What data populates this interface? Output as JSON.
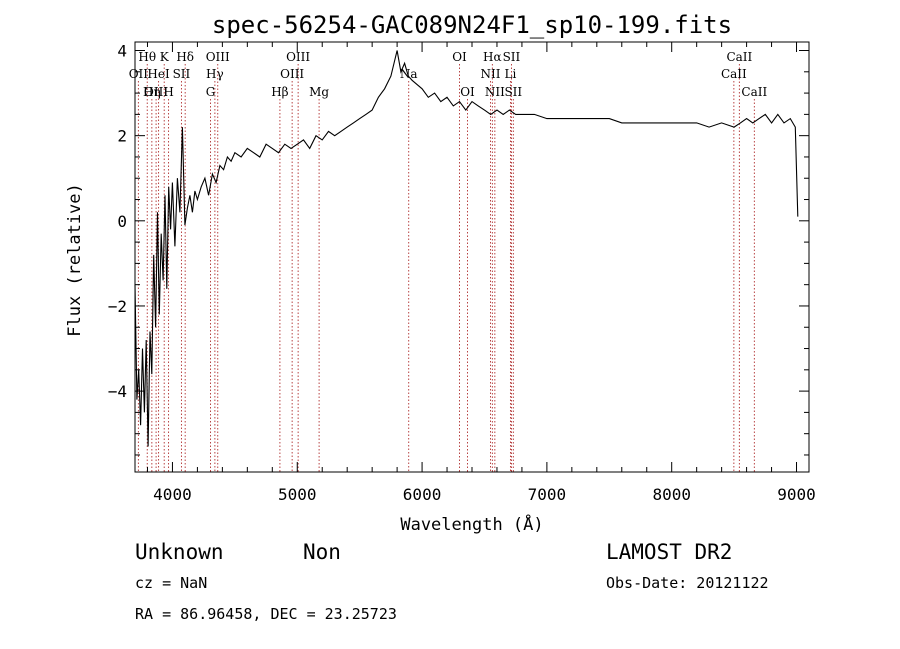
{
  "chart_data": {
    "type": "line",
    "title": "spec-56254-GAC089N24F1_sp10-199.fits",
    "xlabel": "Wavelength (Å)",
    "ylabel": "Flux (relative)",
    "xlim": [
      3700,
      9100
    ],
    "ylim": [
      -5.9,
      4.2
    ],
    "xticks": [
      4000,
      5000,
      6000,
      7000,
      8000,
      9000
    ],
    "xtick_labels": [
      "4000",
      "5000",
      "6000",
      "7000",
      "8000",
      "9000"
    ],
    "yticks": [
      -4,
      -2,
      0,
      2,
      4
    ],
    "ytick_labels": [
      "−4",
      "−2",
      "0",
      "2",
      "4"
    ],
    "series": [
      {
        "name": "spectrum",
        "x": [
          3700,
          3715,
          3730,
          3745,
          3760,
          3775,
          3790,
          3805,
          3820,
          3835,
          3850,
          3865,
          3880,
          3895,
          3910,
          3925,
          3940,
          3955,
          3970,
          3985,
          4000,
          4020,
          4040,
          4060,
          4080,
          4100,
          4120,
          4140,
          4160,
          4180,
          4200,
          4230,
          4260,
          4290,
          4320,
          4350,
          4380,
          4410,
          4440,
          4470,
          4500,
          4550,
          4600,
          4650,
          4700,
          4750,
          4800,
          4850,
          4900,
          4950,
          5000,
          5050,
          5100,
          5150,
          5200,
          5250,
          5300,
          5350,
          5400,
          5450,
          5500,
          5550,
          5600,
          5650,
          5700,
          5750,
          5800,
          5830,
          5860,
          5890,
          5920,
          5960,
          6000,
          6050,
          6100,
          6150,
          6200,
          6250,
          6300,
          6350,
          6400,
          6450,
          6500,
          6550,
          6600,
          6650,
          6700,
          6750,
          6800,
          6900,
          7000,
          7100,
          7200,
          7300,
          7400,
          7500,
          7600,
          7700,
          7800,
          7900,
          8000,
          8100,
          8200,
          8300,
          8400,
          8500,
          8550,
          8600,
          8650,
          8700,
          8750,
          8800,
          8850,
          8900,
          8950,
          8990,
          9010
        ],
        "y": [
          -1.5,
          -4.2,
          -3.5,
          -4.8,
          -3.0,
          -4.5,
          -2.8,
          -5.3,
          -2.6,
          -3.6,
          -0.8,
          -2.5,
          0.2,
          -2.2,
          -0.3,
          -1.4,
          0.6,
          -1.6,
          0.8,
          -0.2,
          0.9,
          -0.6,
          1.0,
          0.2,
          2.2,
          -0.1,
          0.3,
          0.6,
          0.2,
          0.7,
          0.5,
          0.8,
          1.0,
          0.6,
          1.1,
          0.9,
          1.3,
          1.2,
          1.5,
          1.4,
          1.6,
          1.5,
          1.7,
          1.6,
          1.5,
          1.8,
          1.7,
          1.6,
          1.8,
          1.7,
          1.8,
          1.9,
          1.7,
          2.0,
          1.9,
          2.1,
          2.0,
          2.1,
          2.2,
          2.3,
          2.4,
          2.5,
          2.6,
          2.9,
          3.1,
          3.4,
          4.0,
          3.5,
          3.7,
          3.4,
          3.3,
          3.2,
          3.1,
          2.9,
          3.0,
          2.8,
          2.9,
          2.7,
          2.8,
          2.6,
          2.8,
          2.7,
          2.6,
          2.5,
          2.6,
          2.5,
          2.6,
          2.5,
          2.5,
          2.5,
          2.4,
          2.4,
          2.4,
          2.4,
          2.4,
          2.4,
          2.3,
          2.3,
          2.3,
          2.3,
          2.3,
          2.3,
          2.3,
          2.2,
          2.3,
          2.2,
          2.3,
          2.4,
          2.3,
          2.4,
          2.5,
          2.3,
          2.5,
          2.3,
          2.4,
          2.2,
          0.1
        ]
      }
    ],
    "lines": [
      {
        "label": "Hθ",
        "x": 3798,
        "row": 0
      },
      {
        "label": "OII",
        "x": 3727,
        "row": 1
      },
      {
        "label": "OIII",
        "x": 3869,
        "row": 2
      },
      {
        "label": "K",
        "x": 3934,
        "row": 0
      },
      {
        "label": "HeI",
        "x": 3889,
        "row": 1
      },
      {
        "label": "Hη",
        "x": 3835,
        "row": 2
      },
      {
        "label": "Hδ",
        "x": 4102,
        "row": 0
      },
      {
        "label": "SII",
        "x": 4072,
        "row": 1
      },
      {
        "label": "H",
        "x": 3969,
        "row": 2
      },
      {
        "label": "OIII",
        "x": 4363,
        "row": 0
      },
      {
        "label": "Hγ",
        "x": 4340,
        "row": 1
      },
      {
        "label": "G",
        "x": 4305,
        "row": 2
      },
      {
        "label": "OIII",
        "x": 5007,
        "row": 0
      },
      {
        "label": "OIII",
        "x": 4959,
        "row": 1
      },
      {
        "label": "Hβ",
        "x": 4861,
        "row": 2
      },
      {
        "label": "Mg",
        "x": 5175,
        "row": 2
      },
      {
        "label": "Na",
        "x": 5893,
        "row": 1
      },
      {
        "label": "OI",
        "x": 6300,
        "row": 0
      },
      {
        "label": "OI",
        "x": 6364,
        "row": 2
      },
      {
        "label": "Hα",
        "x": 6563,
        "row": 0
      },
      {
        "label": "NII",
        "x": 6548,
        "row": 1
      },
      {
        "label": "NII",
        "x": 6583,
        "row": 2
      },
      {
        "label": "SII",
        "x": 6716,
        "row": 0
      },
      {
        "label": "Li",
        "x": 6708,
        "row": 1
      },
      {
        "label": "SII",
        "x": 6731,
        "row": 2
      },
      {
        "label": "CaII",
        "x": 8542,
        "row": 0
      },
      {
        "label": "CaII",
        "x": 8498,
        "row": 1
      },
      {
        "label": "CaII",
        "x": 8662,
        "row": 2
      }
    ]
  },
  "info": {
    "class": "Unknown",
    "subclass": "Non",
    "survey": "LAMOST DR2",
    "cz": "cz = NaN",
    "obs_date": "Obs-Date: 20121122",
    "coords": "RA =  86.96458, DEC =  23.25723"
  }
}
